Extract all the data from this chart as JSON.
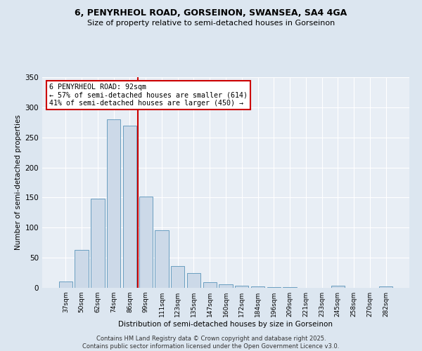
{
  "title1": "6, PENYRHEOL ROAD, GORSEINON, SWANSEA, SA4 4GA",
  "title2": "Size of property relative to semi-detached houses in Gorseinon",
  "xlabel": "Distribution of semi-detached houses by size in Gorseinon",
  "ylabel": "Number of semi-detached properties",
  "categories": [
    "37sqm",
    "50sqm",
    "62sqm",
    "74sqm",
    "86sqm",
    "99sqm",
    "111sqm",
    "123sqm",
    "135sqm",
    "147sqm",
    "160sqm",
    "172sqm",
    "184sqm",
    "196sqm",
    "209sqm",
    "221sqm",
    "233sqm",
    "245sqm",
    "258sqm",
    "270sqm",
    "282sqm"
  ],
  "values": [
    10,
    63,
    148,
    280,
    270,
    152,
    96,
    36,
    25,
    9,
    6,
    3,
    2,
    1,
    1,
    0,
    0,
    3,
    0,
    0,
    2
  ],
  "bar_color": "#ccd9e8",
  "bar_edge_color": "#6a9ec0",
  "vline_x": 4.5,
  "vline_color": "#cc0000",
  "annotation_title": "6 PENYRHEOL ROAD: 92sqm",
  "annotation_line1": "← 57% of semi-detached houses are smaller (614)",
  "annotation_line2": "41% of semi-detached houses are larger (450) →",
  "annotation_box_color": "#cc0000",
  "ylim": [
    0,
    350
  ],
  "yticks": [
    0,
    50,
    100,
    150,
    200,
    250,
    300,
    350
  ],
  "footer1": "Contains HM Land Registry data © Crown copyright and database right 2025.",
  "footer2": "Contains public sector information licensed under the Open Government Licence v3.0.",
  "fig_bg_color": "#dce6f0",
  "plot_bg_color": "#e8eef5"
}
